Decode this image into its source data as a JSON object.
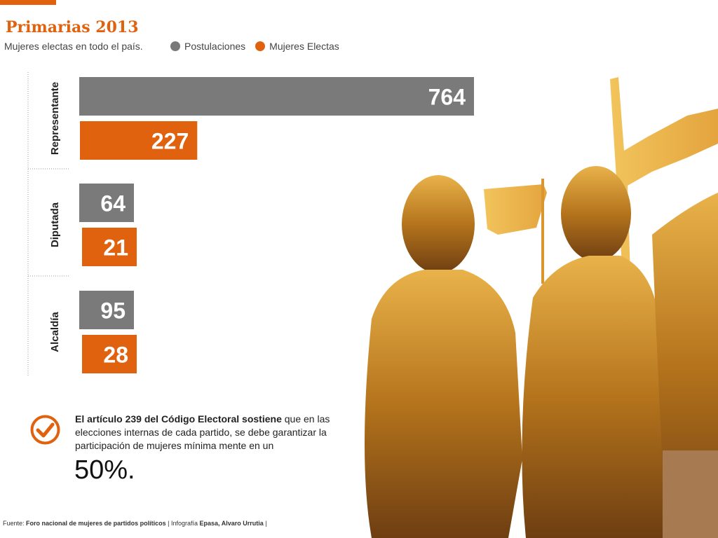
{
  "header": {
    "title": "Primarias 2013",
    "subtitle": "Mujeres electas en todo el país."
  },
  "legend": [
    {
      "label": "Postulaciones",
      "color": "#7a7a7a"
    },
    {
      "label": "Mujeres Electas",
      "color": "#e0620e"
    }
  ],
  "chart_data": {
    "type": "bar",
    "orientation": "horizontal",
    "categories": [
      "Representante",
      "Diputada",
      "Alcaldía"
    ],
    "series": [
      {
        "name": "Postulaciones",
        "color": "#7a7a7a",
        "values": [
          764,
          64,
          95
        ]
      },
      {
        "name": "Mujeres Electas",
        "color": "#e0620e",
        "values": [
          227,
          21,
          28
        ]
      }
    ]
  },
  "note": {
    "bold_text": "El artículo 239 del Código Electoral sostiene",
    "text": " que en las elecciones internas de cada partido, se debe garantizar la participación de mujeres mínima mente en un",
    "percentage": "50%."
  },
  "footer": {
    "source_label": "Fuente:",
    "source": "Foro nacional de mujeres de partidos políticos",
    "sep1": "|",
    "credit_label": "Infografía",
    "credit": "Epasa, Alvaro Urrutia",
    "sep2": "|"
  }
}
